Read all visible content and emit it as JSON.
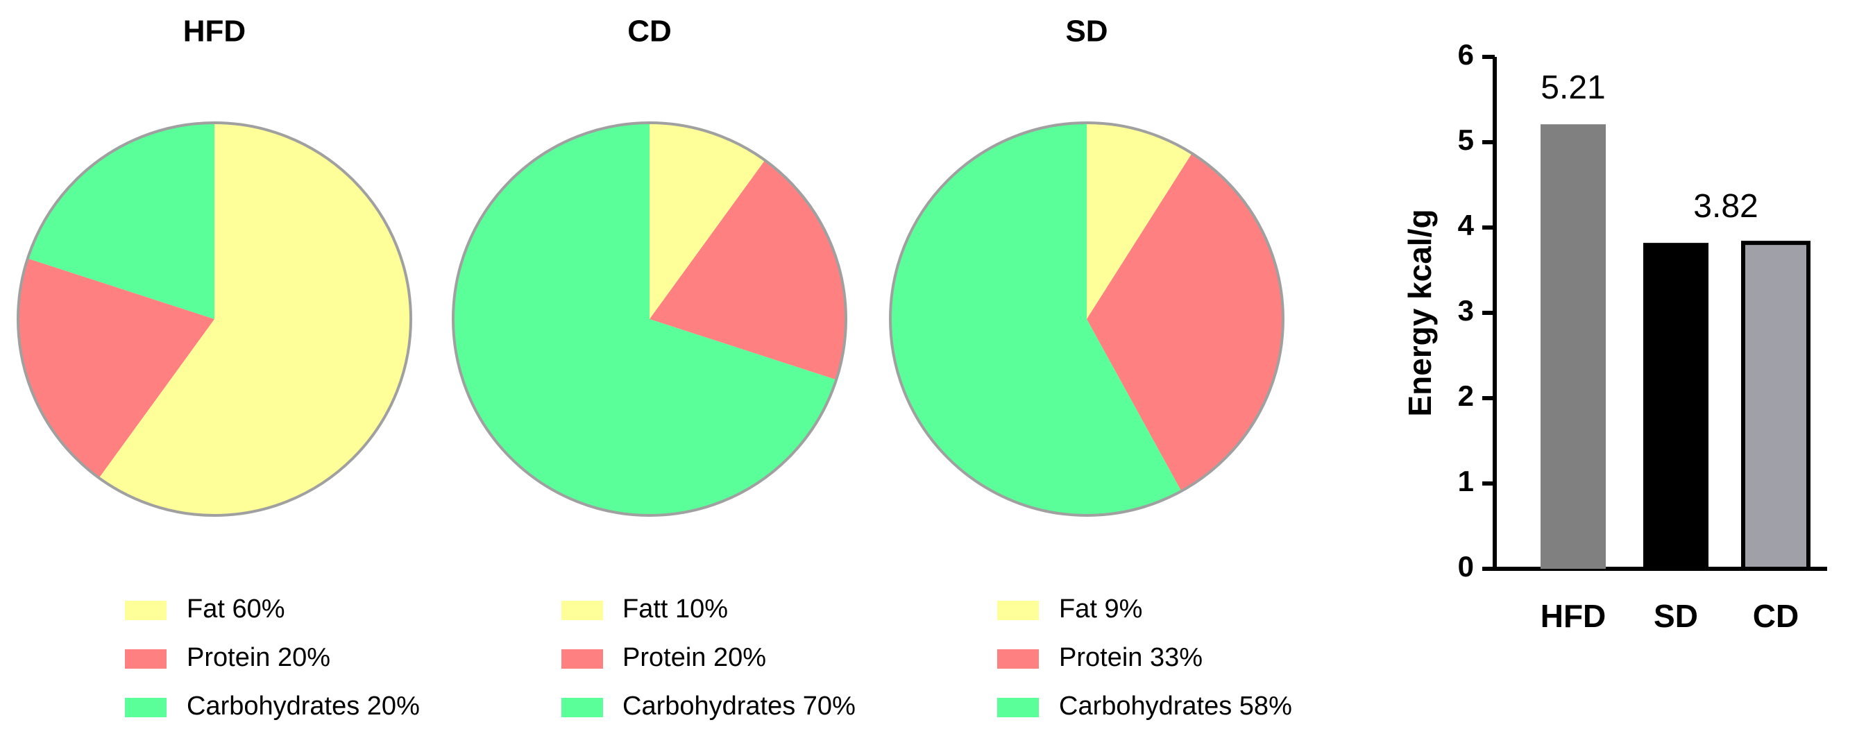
{
  "chart_data": [
    {
      "type": "pie",
      "title": "HFD",
      "categories": [
        "Fat 60%",
        "Protein 20%",
        "Carbohydrates 20%"
      ],
      "values": [
        60,
        20,
        20
      ],
      "colors": [
        "#ffff99",
        "#ff8080",
        "#5aff9a"
      ]
    },
    {
      "type": "pie",
      "title": "CD",
      "categories": [
        "Fatt 10%",
        "Protein 20%",
        "Carbohydrates 70%"
      ],
      "values": [
        10,
        20,
        70
      ],
      "colors": [
        "#ffff99",
        "#ff8080",
        "#5aff9a"
      ]
    },
    {
      "type": "pie",
      "title": "SD",
      "categories": [
        "Fat 9%",
        "Protein 33%",
        "Carbohydrates 58%"
      ],
      "values": [
        9,
        33,
        58
      ],
      "colors": [
        "#ffff99",
        "#ff8080",
        "#5aff9a"
      ]
    },
    {
      "type": "bar",
      "categories": [
        "HFD",
        "SD",
        "CD"
      ],
      "values": [
        5.21,
        3.82,
        3.82
      ],
      "value_labels": [
        "5.21",
        "3.82",
        null
      ],
      "colors": [
        "#808080",
        "#000000",
        "#a0a0a8"
      ],
      "ylabel": "Energy kcal/g",
      "ylim": [
        0,
        6
      ],
      "yticks": [
        0,
        1,
        2,
        3,
        4,
        5,
        6
      ]
    }
  ]
}
